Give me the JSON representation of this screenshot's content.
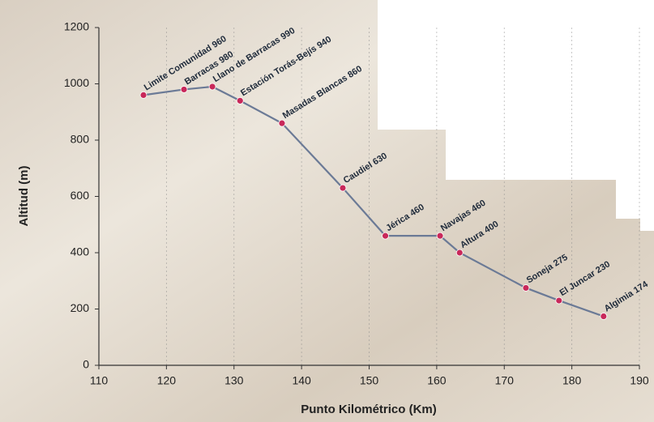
{
  "chart_data": {
    "type": "line",
    "x_label": "Punto Kilométrico (Km)",
    "y_label": "Altitud (m)",
    "x": [
      116.6,
      122.6,
      126.8,
      130.9,
      137.1,
      146.1,
      152.4,
      160.5,
      163.4,
      173.2,
      178.1,
      184.7
    ],
    "series": [
      {
        "color": "#6b7a96",
        "values": [
          960,
          980,
          990,
          940,
          860,
          630,
          460,
          460,
          400,
          275,
          230,
          174
        ],
        "value_labels": [
          "Limite Comunidad 960",
          "Barracas 980",
          "Llano de Barracas 990",
          "Estación Torás-Bejís 940",
          "Masadas Blancas 860",
          "Caudiel 630",
          "Jérica 460",
          "Navajas 460",
          "Altura 400",
          "Soneja 275",
          "El Juncar 230",
          "Algimia 174"
        ]
      }
    ],
    "xlim": [
      110,
      190
    ],
    "xticks": [
      110,
      120,
      130,
      140,
      150,
      160,
      170,
      180,
      190
    ],
    "ylim": [
      0,
      1200
    ],
    "yticks": [
      0,
      200,
      400,
      600,
      800,
      1000,
      1200
    ],
    "marker_color": "#c8285a",
    "grid": true
  }
}
